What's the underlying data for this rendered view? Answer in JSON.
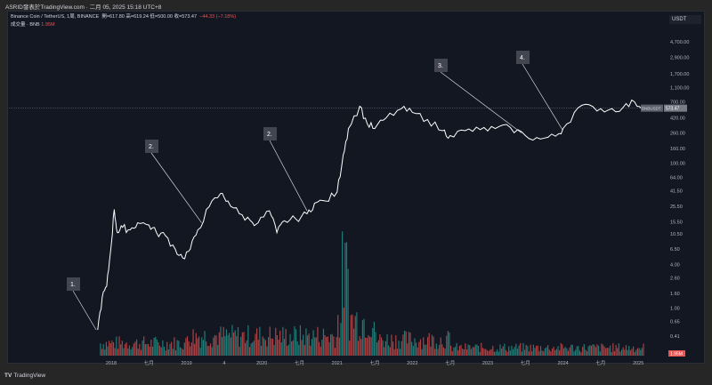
{
  "header": {
    "published": "ASRID發表於TradingView.com · 二月 05, 2025 15:18 UTC+8"
  },
  "legend": {
    "symbol": "Binance Coin / TetherUS, 1周, BINANCE",
    "ohlc": "開=617.80 高=619.24 低=500.00 收=573.47",
    "change": "−44.33 (−7.18%)",
    "volume_label": "成交量 · BNB",
    "volume_value": "1.95M"
  },
  "axis": {
    "currency": "USDT"
  },
  "colors": {
    "background": "#131722",
    "price_line": "#ffffff",
    "volume_up": "#26a69a",
    "volume_down": "#ef5350",
    "last_price_label": "#ef5350"
  },
  "chart_data": {
    "type": "line",
    "yscale": "log",
    "ylim": [
      0.3,
      7000
    ],
    "y_ticks": [
      "4,700.00",
      "2,900.00",
      "1,700.00",
      "1,100.00",
      "700.00",
      "420.00",
      "260.00",
      "160.00",
      "100.00",
      "64.00",
      "41.50",
      "25.50",
      "15.50",
      "10.50",
      "6.50",
      "4.00",
      "2.60",
      "1.60",
      "1.00",
      "0.65",
      "0.41"
    ],
    "x_ticks": [
      "2018",
      "七月",
      "2019",
      "4",
      "2020",
      "七月",
      "2021",
      "七月",
      "2022",
      "七月",
      "2023",
      "七月",
      "2024",
      "七月",
      "2025"
    ],
    "series": [
      {
        "name": "BNBUSDT",
        "points": [
          [
            2017.82,
            0.5
          ],
          [
            2017.88,
            1.4
          ],
          [
            2017.94,
            2.0
          ],
          [
            2017.99,
            6
          ],
          [
            2018.04,
            23
          ],
          [
            2018.08,
            11
          ],
          [
            2018.15,
            13
          ],
          [
            2018.25,
            12
          ],
          [
            2018.35,
            15
          ],
          [
            2018.5,
            14
          ],
          [
            2018.6,
            11
          ],
          [
            2018.72,
            10
          ],
          [
            2018.85,
            6.5
          ],
          [
            2018.95,
            4.9
          ],
          [
            2019.05,
            6.5
          ],
          [
            2019.15,
            12
          ],
          [
            2019.3,
            25
          ],
          [
            2019.45,
            38
          ],
          [
            2019.55,
            30
          ],
          [
            2019.7,
            20
          ],
          [
            2019.85,
            16
          ],
          [
            2019.95,
            15
          ],
          [
            2020.1,
            22
          ],
          [
            2020.2,
            11
          ],
          [
            2020.3,
            16
          ],
          [
            2020.45,
            17
          ],
          [
            2020.6,
            20
          ],
          [
            2020.7,
            28
          ],
          [
            2020.85,
            30
          ],
          [
            2021.0,
            40
          ],
          [
            2021.08,
            130
          ],
          [
            2021.15,
            300
          ],
          [
            2021.3,
            610
          ],
          [
            2021.4,
            350
          ],
          [
            2021.5,
            300
          ],
          [
            2021.65,
            420
          ],
          [
            2021.85,
            560
          ],
          [
            2022.0,
            500
          ],
          [
            2022.2,
            400
          ],
          [
            2022.4,
            280
          ],
          [
            2022.5,
            240
          ],
          [
            2022.7,
            280
          ],
          [
            2022.9,
            290
          ],
          [
            2023.1,
            300
          ],
          [
            2023.3,
            310
          ],
          [
            2023.5,
            240
          ],
          [
            2023.7,
            215
          ],
          [
            2023.9,
            235
          ],
          [
            2024.0,
            300
          ],
          [
            2024.2,
            580
          ],
          [
            2024.4,
            600
          ],
          [
            2024.6,
            540
          ],
          [
            2024.8,
            590
          ],
          [
            2024.95,
            700
          ],
          [
            2025.08,
            573.47
          ]
        ]
      }
    ],
    "last_price": {
      "symbol": "BNBUSDT",
      "value": "573.47"
    },
    "annotations": [
      {
        "label": "1.",
        "target": [
          2017.8,
          0.5
        ]
      },
      {
        "label": "2.",
        "target": [
          2019.2,
          15
        ]
      },
      {
        "label": "2.",
        "target": [
          2020.6,
          22
        ]
      },
      {
        "label": "3.",
        "target": [
          2023.45,
          260
        ]
      },
      {
        "label": "4.",
        "target": [
          2024.0,
          280
        ]
      }
    ]
  },
  "footer": {
    "logo": "TV",
    "brand": "TradingView"
  }
}
